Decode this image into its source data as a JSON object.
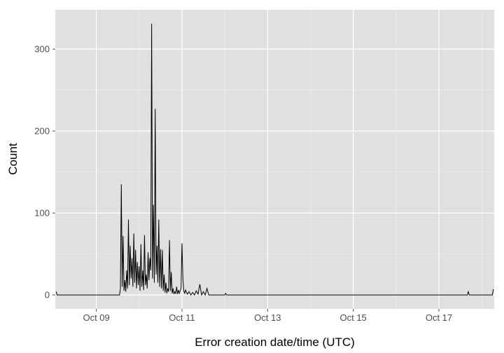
{
  "chart_data": {
    "type": "line",
    "title": "",
    "xlabel": "Error creation date/time (UTC)",
    "ylabel": "Count",
    "x_axis": {
      "kind": "date",
      "min": "2013-10-08T01:00:00",
      "max": "2013-10-18T07:00:00",
      "ticks": [
        {
          "value": "2013-10-09T00:00:00",
          "label": "Oct 09"
        },
        {
          "value": "2013-10-11T00:00:00",
          "label": "Oct 11"
        },
        {
          "value": "2013-10-13T00:00:00",
          "label": "Oct 13"
        },
        {
          "value": "2013-10-15T00:00:00",
          "label": "Oct 15"
        },
        {
          "value": "2013-10-17T00:00:00",
          "label": "Oct 17"
        }
      ]
    },
    "y_axis": {
      "min": -17,
      "max": 348,
      "ticks": [
        {
          "value": 0,
          "label": "0"
        },
        {
          "value": 100,
          "label": "100"
        },
        {
          "value": 200,
          "label": "200"
        },
        {
          "value": 300,
          "label": "300"
        }
      ]
    },
    "grid": true,
    "background": "#e0e0e0",
    "gridColor": "#ffffff",
    "lineColor": "#000000",
    "points": [
      [
        "2013-10-08T01:30:00",
        4
      ],
      [
        "2013-10-08T02:00:00",
        0
      ],
      [
        "2013-10-09T13:00:00",
        0
      ],
      [
        "2013-10-09T13:30:00",
        8
      ],
      [
        "2013-10-09T14:00:00",
        135
      ],
      [
        "2013-10-09T14:30:00",
        10
      ],
      [
        "2013-10-09T15:00:00",
        72
      ],
      [
        "2013-10-09T15:30:00",
        5
      ],
      [
        "2013-10-09T16:00:00",
        18
      ],
      [
        "2013-10-09T16:30:00",
        4
      ],
      [
        "2013-10-09T17:00:00",
        30
      ],
      [
        "2013-10-09T17:30:00",
        8
      ],
      [
        "2013-10-09T18:00:00",
        92
      ],
      [
        "2013-10-09T18:30:00",
        12
      ],
      [
        "2013-10-09T19:00:00",
        60
      ],
      [
        "2013-10-09T19:30:00",
        20
      ],
      [
        "2013-10-09T20:00:00",
        45
      ],
      [
        "2013-10-09T20:30:00",
        10
      ],
      [
        "2013-10-09T21:00:00",
        75
      ],
      [
        "2013-10-09T21:30:00",
        15
      ],
      [
        "2013-10-09T22:00:00",
        55
      ],
      [
        "2013-10-09T22:30:00",
        8
      ],
      [
        "2013-10-09T23:00:00",
        40
      ],
      [
        "2013-10-09T23:30:00",
        12
      ],
      [
        "2013-10-10T00:00:00",
        35
      ],
      [
        "2013-10-10T00:30:00",
        5
      ],
      [
        "2013-10-10T01:00:00",
        62
      ],
      [
        "2013-10-10T01:30:00",
        10
      ],
      [
        "2013-10-10T02:00:00",
        30
      ],
      [
        "2013-10-10T02:30:00",
        6
      ],
      [
        "2013-10-10T03:00:00",
        73
      ],
      [
        "2013-10-10T03:30:00",
        12
      ],
      [
        "2013-10-10T04:00:00",
        25
      ],
      [
        "2013-10-10T04:30:00",
        8
      ],
      [
        "2013-10-10T05:00:00",
        52
      ],
      [
        "2013-10-10T05:30:00",
        18
      ],
      [
        "2013-10-10T06:00:00",
        45
      ],
      [
        "2013-10-10T06:30:00",
        30
      ],
      [
        "2013-10-10T07:00:00",
        331
      ],
      [
        "2013-10-10T07:30:00",
        20
      ],
      [
        "2013-10-10T08:00:00",
        110
      ],
      [
        "2013-10-10T08:30:00",
        15
      ],
      [
        "2013-10-10T09:00:00",
        227
      ],
      [
        "2013-10-10T09:30:00",
        25
      ],
      [
        "2013-10-10T10:00:00",
        60
      ],
      [
        "2013-10-10T10:30:00",
        15
      ],
      [
        "2013-10-10T11:00:00",
        92
      ],
      [
        "2013-10-10T11:30:00",
        10
      ],
      [
        "2013-10-10T12:00:00",
        56
      ],
      [
        "2013-10-10T12:30:00",
        8
      ],
      [
        "2013-10-10T13:00:00",
        55
      ],
      [
        "2013-10-10T13:30:00",
        5
      ],
      [
        "2013-10-10T14:00:00",
        25
      ],
      [
        "2013-10-10T14:30:00",
        3
      ],
      [
        "2013-10-10T15:00:00",
        15
      ],
      [
        "2013-10-10T15:30:00",
        2
      ],
      [
        "2013-10-10T16:00:00",
        8
      ],
      [
        "2013-10-10T16:30:00",
        4
      ],
      [
        "2013-10-10T17:00:00",
        67
      ],
      [
        "2013-10-10T17:30:00",
        5
      ],
      [
        "2013-10-10T18:00:00",
        28
      ],
      [
        "2013-10-10T18:30:00",
        2
      ],
      [
        "2013-10-10T19:00:00",
        8
      ],
      [
        "2013-10-10T19:30:00",
        1
      ],
      [
        "2013-10-10T20:00:00",
        4
      ],
      [
        "2013-10-10T20:30:00",
        2
      ],
      [
        "2013-10-10T21:00:00",
        10
      ],
      [
        "2013-10-10T21:30:00",
        1
      ],
      [
        "2013-10-10T22:00:00",
        6
      ],
      [
        "2013-10-10T22:30:00",
        2
      ],
      [
        "2013-10-10T23:00:00",
        5
      ],
      [
        "2013-10-10T23:30:00",
        8
      ],
      [
        "2013-10-11T00:00:00",
        63
      ],
      [
        "2013-10-11T00:30:00",
        20
      ],
      [
        "2013-10-11T01:00:00",
        5
      ],
      [
        "2013-10-11T01:30:00",
        2
      ],
      [
        "2013-10-11T02:00:00",
        6
      ],
      [
        "2013-10-11T03:00:00",
        1
      ],
      [
        "2013-10-11T04:00:00",
        4
      ],
      [
        "2013-10-11T05:00:00",
        0
      ],
      [
        "2013-10-11T06:00:00",
        3
      ],
      [
        "2013-10-11T07:00:00",
        0
      ],
      [
        "2013-10-11T08:00:00",
        5
      ],
      [
        "2013-10-11T09:00:00",
        1
      ],
      [
        "2013-10-11T10:00:00",
        13
      ],
      [
        "2013-10-11T11:00:00",
        0
      ],
      [
        "2013-10-11T12:00:00",
        4
      ],
      [
        "2013-10-11T13:00:00",
        0
      ],
      [
        "2013-10-11T14:00:00",
        8
      ],
      [
        "2013-10-11T15:00:00",
        0
      ],
      [
        "2013-10-12T00:00:00",
        0
      ],
      [
        "2013-10-12T00:30:00",
        2
      ],
      [
        "2013-10-12T01:00:00",
        0
      ],
      [
        "2013-10-17T16:00:00",
        0
      ],
      [
        "2013-10-17T16:30:00",
        4
      ],
      [
        "2013-10-17T17:00:00",
        0
      ],
      [
        "2013-10-18T06:00:00",
        0
      ],
      [
        "2013-10-18T06:30:00",
        7
      ]
    ]
  }
}
